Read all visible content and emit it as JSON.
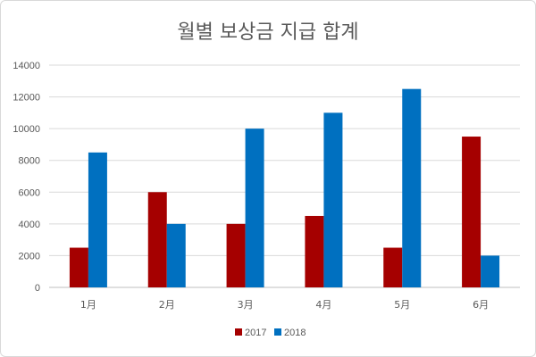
{
  "chart_data": {
    "type": "bar",
    "title": "월별 보상금 지급 합계",
    "xlabel": "",
    "ylabel": "",
    "categories": [
      "1月",
      "2月",
      "3月",
      "4月",
      "5月",
      "6月"
    ],
    "yticks": [
      0,
      2000,
      4000,
      6000,
      8000,
      10000,
      12000,
      14000
    ],
    "ylim": [
      0,
      14000
    ],
    "grid": true,
    "legend": "bottom",
    "series": [
      {
        "name": "2017",
        "color": "#a50000",
        "values": [
          2500,
          6000,
          4000,
          4500,
          2500,
          9500
        ]
      },
      {
        "name": "2018",
        "color": "#0070c0",
        "values": [
          8500,
          4000,
          10000,
          11000,
          12500,
          2000
        ]
      }
    ]
  }
}
